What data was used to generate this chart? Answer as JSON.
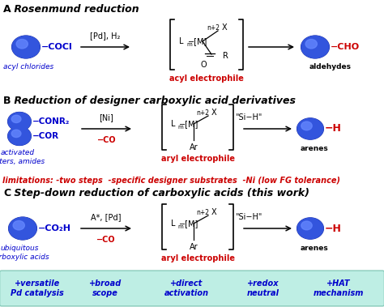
{
  "title_A": "A",
  "title_A_text": " Rosenmund reduction",
  "title_B": "B",
  "title_B_text": " Reduction of designer carboxylic acid derivatives",
  "title_C": "C",
  "title_C_text": " Step-down reduction of carboxylic acids (this work)",
  "limitations_text": "limitations: -two steps  -specific designer substrates  -Ni (low FG tolerance)",
  "bottom_items": [
    "+versatile\nPd catalysis",
    "+broad\nscope",
    "+direct\nactivation",
    "+redox\nneutral",
    "+HAT\nmechanism"
  ],
  "blue_dark": "#0000cc",
  "red": "#cc0000",
  "black": "#000000",
  "bg_white": "#ffffff",
  "bg_teal": "#beeee4",
  "sphere_base": "#1a2ecc",
  "sphere_mid": "#3355dd",
  "sphere_hi": "#6688ff",
  "figw": 4.74,
  "figh": 3.79,
  "dpi": 100
}
